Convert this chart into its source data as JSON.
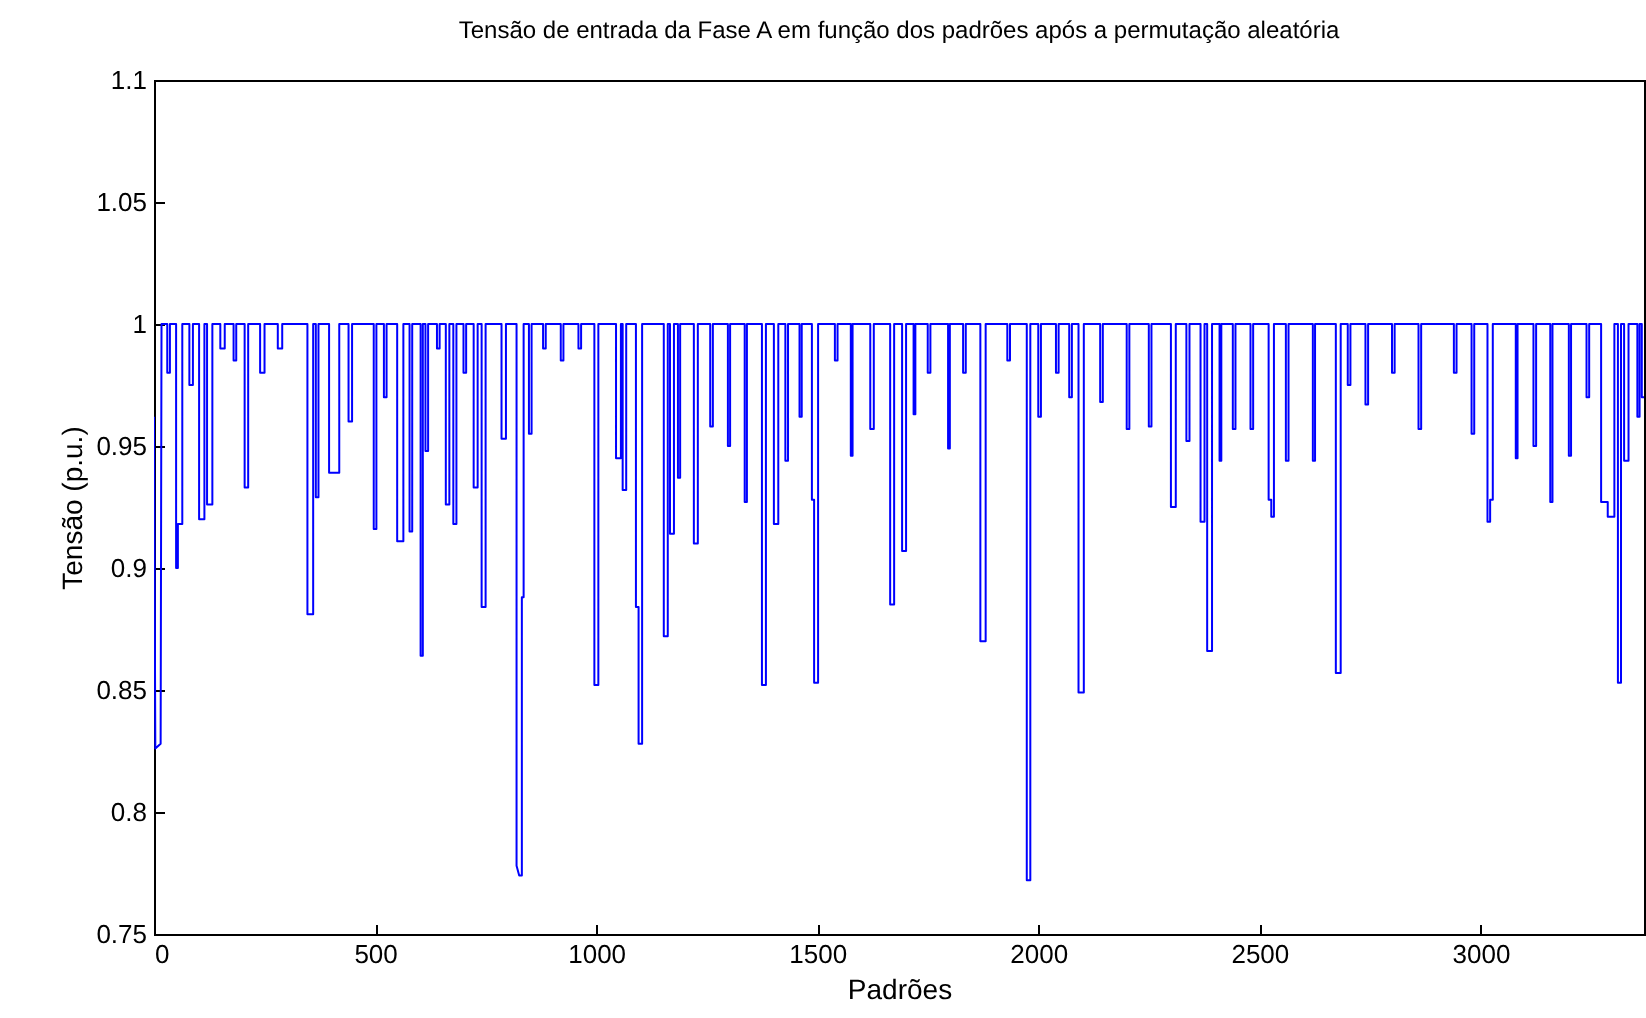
{
  "chart_data": {
    "type": "line",
    "title": "Tensão de entrada da Fase A em função dos padrões após a permutação aleatória",
    "xlabel": "Padrões",
    "ylabel": "Tensão (p.u.)",
    "xlim": [
      0,
      3370
    ],
    "ylim": [
      0.75,
      1.1
    ],
    "xticks": [
      0,
      500,
      1000,
      1500,
      2000,
      2500,
      3000
    ],
    "yticks": [
      0.75,
      0.8,
      0.85,
      0.9,
      0.95,
      1,
      1.05,
      1.1
    ],
    "x": [
      0,
      3,
      15,
      17,
      30,
      30,
      36,
      36,
      50,
      50,
      54,
      54,
      64,
      64,
      80,
      80,
      88,
      88,
      102,
      102,
      114,
      114,
      120,
      120,
      132,
      132,
      150,
      150,
      160,
      160,
      180,
      180,
      186,
      186,
      205,
      205,
      213,
      213,
      240,
      240,
      250,
      250,
      280,
      280,
      290,
      290,
      347,
      347,
      360,
      360,
      366,
      366,
      372,
      372,
      396,
      396,
      419,
      419,
      440,
      440,
      448,
      448,
      497,
      497,
      503,
      503,
      520,
      520,
      526,
      526,
      550,
      550,
      564,
      564,
      578,
      578,
      584,
      584,
      603,
      603,
      608,
      608,
      614,
      614,
      620,
      620,
      640,
      640,
      646,
      646,
      660,
      660,
      668,
      668,
      677,
      677,
      684,
      684,
      700,
      700,
      706,
      706,
      723,
      723,
      732,
      732,
      741,
      741,
      750,
      750,
      786,
      786,
      796,
      796,
      820,
      820,
      826,
      832,
      832,
      836,
      836,
      848,
      848,
      854,
      854,
      880,
      880,
      886,
      886,
      920,
      920,
      926,
      926,
      960,
      960,
      966,
      966,
      996,
      996,
      1005,
      1005,
      1045,
      1045,
      1056,
      1056,
      1060,
      1060,
      1068,
      1068,
      1090,
      1090,
      1096,
      1096,
      1104,
      1104,
      1153,
      1153,
      1162,
      1162,
      1167,
      1167,
      1176,
      1176,
      1185,
      1185,
      1190,
      1190,
      1221,
      1221,
      1230,
      1230,
      1258,
      1258,
      1264,
      1264,
      1298,
      1298,
      1303,
      1303,
      1336,
      1336,
      1341,
      1341,
      1375,
      1375,
      1384,
      1384,
      1402,
      1402,
      1412,
      1412,
      1428,
      1428,
      1434,
      1434,
      1460,
      1460,
      1465,
      1465,
      1488,
      1488,
      1493,
      1493,
      1502,
      1502,
      1540,
      1540,
      1546,
      1546,
      1576,
      1576,
      1580,
      1580,
      1620,
      1620,
      1628,
      1628,
      1665,
      1665,
      1674,
      1674,
      1692,
      1692,
      1701,
      1701,
      1718,
      1718,
      1722,
      1722,
      1750,
      1750,
      1756,
      1756,
      1796,
      1796,
      1800,
      1800,
      1830,
      1830,
      1836,
      1836,
      1869,
      1869,
      1881,
      1881,
      1930,
      1930,
      1936,
      1936,
      1974,
      1974,
      1982,
      1982,
      2000,
      2000,
      2006,
      2006,
      2040,
      2040,
      2046,
      2046,
      2070,
      2070,
      2076,
      2076,
      2091,
      2091,
      2103,
      2103,
      2140,
      2140,
      2146,
      2146,
      2200,
      2200,
      2206,
      2206,
      2250,
      2250,
      2256,
      2256,
      2300,
      2300,
      2311,
      2311,
      2335,
      2335,
      2342,
      2342,
      2367,
      2367,
      2376,
      2376,
      2382,
      2382,
      2393,
      2393,
      2410,
      2410,
      2414,
      2414,
      2440,
      2440,
      2446,
      2446,
      2480,
      2480,
      2486,
      2486,
      2521,
      2521,
      2527,
      2527,
      2533,
      2533,
      2560,
      2560,
      2566,
      2566,
      2621,
      2621,
      2626,
      2626,
      2673,
      2673,
      2684,
      2684,
      2700,
      2700,
      2706,
      2706,
      2740,
      2740,
      2746,
      2746,
      2800,
      2800,
      2806,
      2806,
      2860,
      2860,
      2866,
      2866,
      2940,
      2940,
      2946,
      2946,
      2980,
      2980,
      2986,
      2986,
      3016,
      3016,
      3022,
      3022,
      3028,
      3028,
      3080,
      3080,
      3084,
      3084,
      3120,
      3120,
      3126,
      3126,
      3158,
      3158,
      3163,
      3163,
      3200,
      3200,
      3205,
      3205,
      3240,
      3240,
      3246,
      3246,
      3273,
      3273,
      3288,
      3288,
      3303,
      3303,
      3311,
      3311,
      3318,
      3318,
      3325,
      3325,
      3335,
      3335,
      3355,
      3355,
      3360,
      3360,
      3365,
      3365,
      3370
    ],
    "series": [
      {
        "color": "#0000ff",
        "values": [
          0.962,
          0.826,
          0.828,
          1,
          1,
          0.98,
          0.98,
          1,
          1,
          0.9,
          0.9,
          0.918,
          0.918,
          1,
          1,
          0.975,
          0.975,
          1,
          1,
          0.92,
          0.92,
          1,
          1,
          0.926,
          0.926,
          1,
          1,
          0.99,
          0.99,
          1,
          1,
          0.985,
          0.985,
          1,
          1,
          0.933,
          0.933,
          1,
          1,
          0.98,
          0.98,
          1,
          1,
          0.99,
          0.99,
          1,
          1,
          0.881,
          0.881,
          1,
          1,
          0.929,
          0.929,
          1,
          1,
          0.939,
          0.939,
          1,
          1,
          0.96,
          0.96,
          1,
          1,
          0.916,
          0.916,
          1,
          1,
          0.97,
          0.97,
          1,
          1,
          0.911,
          0.911,
          1,
          1,
          0.915,
          0.915,
          1,
          1,
          0.864,
          0.864,
          1,
          1,
          0.948,
          0.948,
          1,
          1,
          0.99,
          0.99,
          1,
          1,
          0.926,
          0.926,
          1,
          1,
          0.918,
          0.918,
          1,
          1,
          0.98,
          0.98,
          1,
          1,
          0.933,
          0.933,
          1,
          1,
          0.884,
          0.884,
          1,
          1,
          0.953,
          0.953,
          1,
          1,
          0.778,
          0.774,
          0.774,
          0.888,
          0.888,
          1,
          1,
          0.955,
          0.955,
          1,
          1,
          0.99,
          0.99,
          1,
          1,
          0.985,
          0.985,
          1,
          1,
          0.99,
          0.99,
          1,
          1,
          0.852,
          0.852,
          1,
          1,
          0.945,
          0.945,
          1,
          1,
          0.932,
          0.932,
          1,
          1,
          0.884,
          0.884,
          0.828,
          0.828,
          1,
          1,
          0.872,
          0.872,
          1,
          1,
          0.914,
          0.914,
          1,
          1,
          0.937,
          0.937,
          1,
          1,
          0.91,
          0.91,
          1,
          1,
          0.958,
          0.958,
          1,
          1,
          0.95,
          0.95,
          1,
          1,
          0.927,
          0.927,
          1,
          1,
          0.852,
          0.852,
          1,
          1,
          0.918,
          0.918,
          1,
          1,
          0.944,
          0.944,
          1,
          1,
          0.962,
          0.962,
          1,
          1,
          0.928,
          0.928,
          0.853,
          0.853,
          1,
          1,
          0.985,
          0.985,
          1,
          1,
          0.946,
          0.946,
          1,
          1,
          0.957,
          0.957,
          1,
          1,
          0.885,
          0.885,
          1,
          1,
          0.907,
          0.907,
          1,
          1,
          0.963,
          0.963,
          1,
          1,
          0.98,
          0.98,
          1,
          1,
          0.949,
          0.949,
          1,
          1,
          0.98,
          0.98,
          1,
          1,
          0.87,
          0.87,
          1,
          1,
          0.985,
          0.985,
          1,
          1,
          0.772,
          0.772,
          1,
          1,
          0.962,
          0.962,
          1,
          1,
          0.98,
          0.98,
          1,
          1,
          0.97,
          0.97,
          1,
          1,
          0.849,
          0.849,
          1,
          1,
          0.968,
          0.968,
          1,
          1,
          0.957,
          0.957,
          1,
          1,
          0.958,
          0.958,
          1,
          1,
          0.925,
          0.925,
          1,
          1,
          0.952,
          0.952,
          1,
          1,
          0.919,
          0.919,
          1,
          1,
          0.866,
          0.866,
          1,
          1,
          0.944,
          0.944,
          1,
          1,
          0.957,
          0.957,
          1,
          1,
          0.957,
          0.957,
          1,
          1,
          0.928,
          0.928,
          0.921,
          0.921,
          1,
          1,
          0.944,
          0.944,
          1,
          1,
          0.944,
          0.944,
          1,
          1,
          0.857,
          0.857,
          1,
          1,
          0.975,
          0.975,
          1,
          1,
          0.967,
          0.967,
          1,
          1,
          0.98,
          0.98,
          1,
          1,
          0.957,
          0.957,
          1,
          1,
          0.98,
          0.98,
          1,
          1,
          0.955,
          0.955,
          1,
          1,
          0.919,
          0.919,
          0.928,
          0.928,
          1,
          1,
          0.945,
          0.945,
          1,
          1,
          0.95,
          0.95,
          1,
          1,
          0.927,
          0.927,
          1,
          1,
          0.946,
          0.946,
          1,
          1,
          0.97,
          0.97,
          1,
          1,
          0.927,
          0.927,
          0.921,
          0.921,
          1,
          1,
          0.853,
          0.853,
          1,
          1,
          0.944,
          0.944,
          1,
          1,
          0.962,
          0.962,
          1,
          1,
          0.97,
          0.97
        ]
      }
    ]
  }
}
